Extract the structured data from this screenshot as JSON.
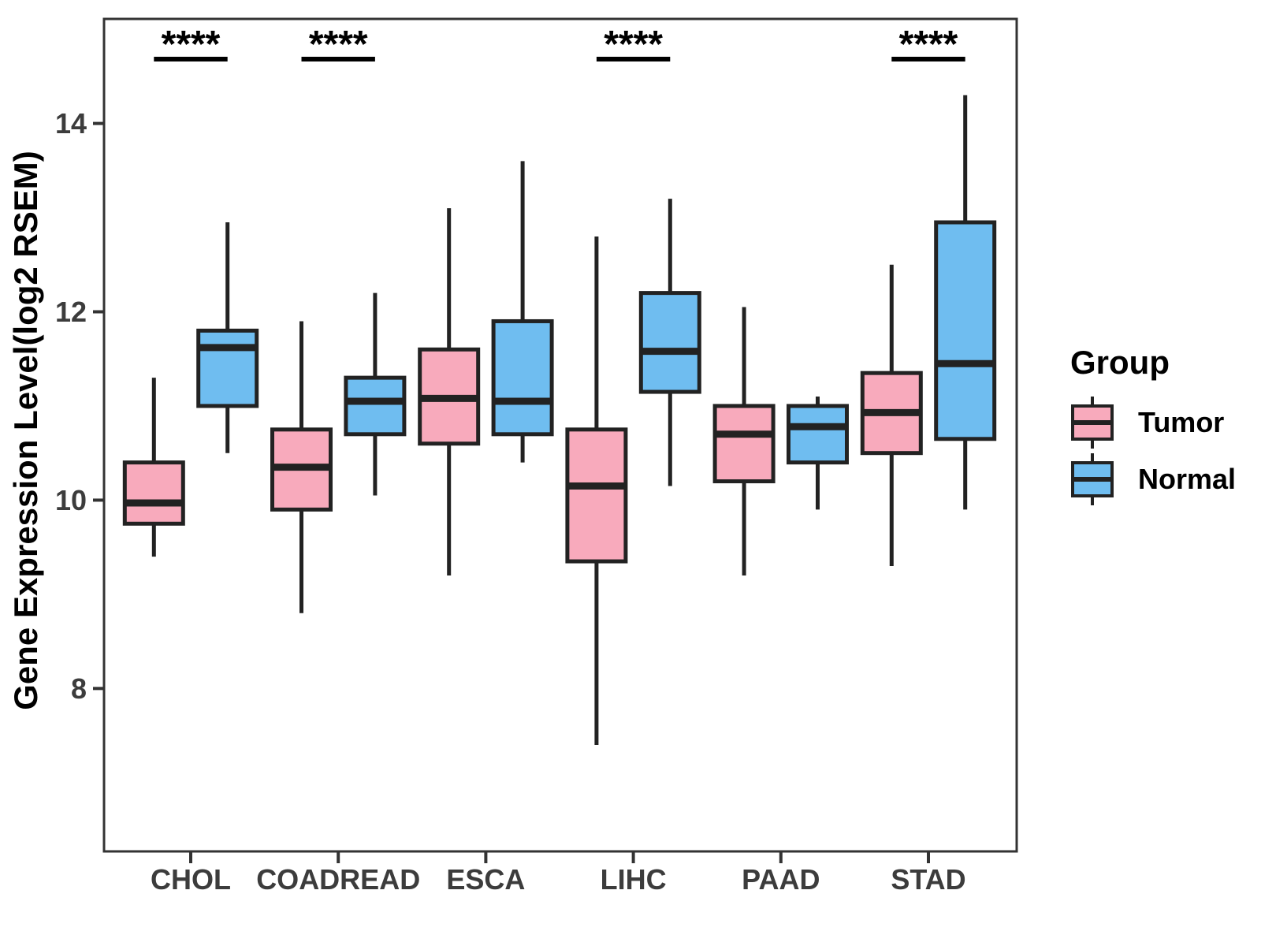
{
  "y_axis": {
    "label": "Gene Expression Level(log2 RSEM)",
    "ticks": [
      8,
      10,
      12,
      14
    ],
    "range": [
      6.27,
      15.11
    ]
  },
  "legend": {
    "title": "Group",
    "items": [
      {
        "label": "Tumor",
        "color_key": "tumor"
      },
      {
        "label": "Normal",
        "color_key": "normal"
      }
    ]
  },
  "colors": {
    "tumor": "#F8AABC",
    "normal": "#6FBDF0",
    "box_border": "#222222",
    "axis_line": "#333333",
    "axis_text": "#3c3c3c",
    "sig": "#000000"
  },
  "chart_data": {
    "type": "boxplot",
    "title": "",
    "xlabel": "",
    "ylabel": "Gene Expression Level(log2 RSEM)",
    "categories": [
      "CHOL",
      "COADREAD",
      "ESCA",
      "LIHC",
      "PAAD",
      "STAD"
    ],
    "legend_position": "right",
    "grid": false,
    "series": [
      {
        "name": "Tumor",
        "boxes": [
          {
            "category": "CHOL",
            "min": 9.4,
            "q1": 9.75,
            "median": 9.97,
            "q3": 10.4,
            "max": 11.3
          },
          {
            "category": "COADREAD",
            "min": 8.8,
            "q1": 9.9,
            "median": 10.35,
            "q3": 10.75,
            "max": 11.9
          },
          {
            "category": "ESCA",
            "min": 9.2,
            "q1": 10.6,
            "median": 11.08,
            "q3": 11.6,
            "max": 13.1
          },
          {
            "category": "LIHC",
            "min": 7.4,
            "q1": 9.35,
            "median": 10.15,
            "q3": 10.75,
            "max": 12.8
          },
          {
            "category": "PAAD",
            "min": 9.2,
            "q1": 10.2,
            "median": 10.7,
            "q3": 11.0,
            "max": 12.05
          },
          {
            "category": "STAD",
            "min": 9.3,
            "q1": 10.5,
            "median": 10.93,
            "q3": 11.35,
            "max": 12.5
          }
        ]
      },
      {
        "name": "Normal",
        "boxes": [
          {
            "category": "CHOL",
            "min": 10.5,
            "q1": 11.0,
            "median": 11.62,
            "q3": 11.8,
            "max": 12.95
          },
          {
            "category": "COADREAD",
            "min": 10.05,
            "q1": 10.7,
            "median": 11.05,
            "q3": 11.3,
            "max": 12.2
          },
          {
            "category": "ESCA",
            "min": 10.4,
            "q1": 10.7,
            "median": 11.05,
            "q3": 11.9,
            "max": 13.6
          },
          {
            "category": "LIHC",
            "min": 10.15,
            "q1": 11.15,
            "median": 11.58,
            "q3": 12.2,
            "max": 13.2
          },
          {
            "category": "PAAD",
            "min": 9.9,
            "q1": 10.4,
            "median": 10.78,
            "q3": 11.0,
            "max": 11.1
          },
          {
            "category": "STAD",
            "min": 9.9,
            "q1": 10.65,
            "median": 11.45,
            "q3": 12.95,
            "max": 14.3
          }
        ]
      }
    ],
    "significance": [
      {
        "category": "CHOL",
        "label": "****"
      },
      {
        "category": "COADREAD",
        "label": "****"
      },
      {
        "category": "LIHC",
        "label": "****"
      },
      {
        "category": "STAD",
        "label": "****"
      }
    ]
  }
}
